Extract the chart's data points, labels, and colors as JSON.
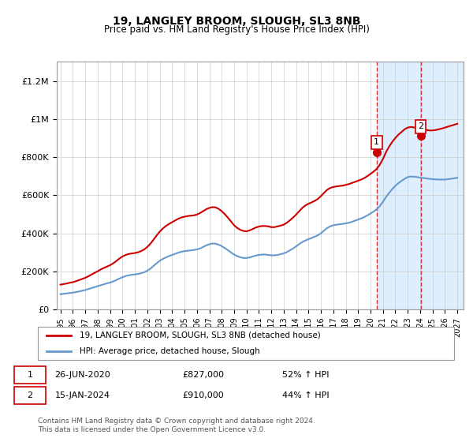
{
  "title": "19, LANGLEY BROOM, SLOUGH, SL3 8NB",
  "subtitle": "Price paid vs. HM Land Registry's House Price Index (HPI)",
  "xlim_start": 1995.0,
  "xlim_end": 2027.5,
  "ylim": [
    0,
    1300000
  ],
  "yticks": [
    0,
    200000,
    400000,
    600000,
    800000,
    1000000,
    1200000
  ],
  "ytick_labels": [
    "£0",
    "£200K",
    "£400K",
    "£600K",
    "£800K",
    "£1M",
    "£1.2M"
  ],
  "xticks": [
    1995,
    1996,
    1997,
    1998,
    1999,
    2000,
    2001,
    2002,
    2003,
    2004,
    2005,
    2006,
    2007,
    2008,
    2009,
    2010,
    2011,
    2012,
    2013,
    2014,
    2015,
    2016,
    2017,
    2018,
    2019,
    2020,
    2021,
    2022,
    2023,
    2024,
    2025,
    2026,
    2027
  ],
  "red_line_color": "#cc0000",
  "blue_line_color": "#6699cc",
  "sale1_x": 2020.49,
  "sale1_y": 827000,
  "sale2_x": 2024.04,
  "sale2_y": 910000,
  "marker_color": "#cc0000",
  "shade_start1": 2020.49,
  "shade_end1": 2024.04,
  "shade_start2": 2024.04,
  "shade_end2": 2027.5,
  "shade_color1": "#ddeeff",
  "shade_color2": "#ddeeff",
  "hatch_color": "#aabbcc",
  "legend_red_label": "19, LANGLEY BROOM, SLOUGH, SL3 8NB (detached house)",
  "legend_blue_label": "HPI: Average price, detached house, Slough",
  "annotation1_label": "1",
  "annotation2_label": "2",
  "table_row1": [
    "1",
    "26-JUN-2020",
    "£827,000",
    "52% ↑ HPI"
  ],
  "table_row2": [
    "2",
    "15-JAN-2024",
    "£910,000",
    "44% ↑ HPI"
  ],
  "footer": "Contains HM Land Registry data © Crown copyright and database right 2024.\nThis data is licensed under the Open Government Licence v3.0.",
  "red_hpi_x": [
    1995.0,
    1995.25,
    1995.5,
    1995.75,
    1996.0,
    1996.25,
    1996.5,
    1996.75,
    1997.0,
    1997.25,
    1997.5,
    1997.75,
    1998.0,
    1998.25,
    1998.5,
    1998.75,
    1999.0,
    1999.25,
    1999.5,
    1999.75,
    2000.0,
    2000.25,
    2000.5,
    2000.75,
    2001.0,
    2001.25,
    2001.5,
    2001.75,
    2002.0,
    2002.25,
    2002.5,
    2002.75,
    2003.0,
    2003.25,
    2003.5,
    2003.75,
    2004.0,
    2004.25,
    2004.5,
    2004.75,
    2005.0,
    2005.25,
    2005.5,
    2005.75,
    2006.0,
    2006.25,
    2006.5,
    2006.75,
    2007.0,
    2007.25,
    2007.5,
    2007.75,
    2008.0,
    2008.25,
    2008.5,
    2008.75,
    2009.0,
    2009.25,
    2009.5,
    2009.75,
    2010.0,
    2010.25,
    2010.5,
    2010.75,
    2011.0,
    2011.25,
    2011.5,
    2011.75,
    2012.0,
    2012.25,
    2012.5,
    2012.75,
    2013.0,
    2013.25,
    2013.5,
    2013.75,
    2014.0,
    2014.25,
    2014.5,
    2014.75,
    2015.0,
    2015.25,
    2015.5,
    2015.75,
    2016.0,
    2016.25,
    2016.5,
    2016.75,
    2017.0,
    2017.25,
    2017.5,
    2017.75,
    2018.0,
    2018.25,
    2018.5,
    2018.75,
    2019.0,
    2019.25,
    2019.5,
    2019.75,
    2020.0,
    2020.25,
    2020.5,
    2020.75,
    2021.0,
    2021.25,
    2021.5,
    2021.75,
    2022.0,
    2022.25,
    2022.5,
    2022.75,
    2023.0,
    2023.25,
    2023.5,
    2023.75,
    2024.0,
    2024.25,
    2024.5,
    2024.75,
    2025.0,
    2025.25,
    2025.5,
    2025.75,
    2026.0,
    2026.25,
    2026.5,
    2026.75,
    2027.0
  ],
  "red_hpi_y": [
    130000,
    133000,
    136000,
    140000,
    143000,
    148000,
    154000,
    160000,
    166000,
    174000,
    183000,
    192000,
    200000,
    210000,
    218000,
    225000,
    232000,
    242000,
    254000,
    267000,
    278000,
    286000,
    291000,
    294000,
    296000,
    300000,
    306000,
    315000,
    328000,
    345000,
    366000,
    388000,
    408000,
    425000,
    438000,
    449000,
    458000,
    467000,
    476000,
    483000,
    487000,
    490000,
    492000,
    494000,
    498000,
    506000,
    516000,
    526000,
    533000,
    537000,
    536000,
    528000,
    516000,
    500000,
    482000,
    462000,
    442000,
    428000,
    418000,
    412000,
    410000,
    415000,
    422000,
    430000,
    435000,
    438000,
    438000,
    436000,
    432000,
    432000,
    436000,
    440000,
    445000,
    455000,
    468000,
    482000,
    498000,
    516000,
    533000,
    546000,
    555000,
    562000,
    570000,
    580000,
    595000,
    612000,
    628000,
    638000,
    643000,
    646000,
    648000,
    650000,
    654000,
    658000,
    664000,
    670000,
    676000,
    682000,
    690000,
    700000,
    712000,
    724000,
    738000,
    760000,
    790000,
    826000,
    855000,
    880000,
    900000,
    918000,
    932000,
    946000,
    955000,
    958000,
    956000,
    952000,
    948000,
    945000,
    942000,
    940000,
    940000,
    942000,
    946000,
    950000,
    955000,
    960000,
    965000,
    970000,
    975000
  ],
  "blue_hpi_x": [
    1995.0,
    1995.25,
    1995.5,
    1995.75,
    1996.0,
    1996.25,
    1996.5,
    1996.75,
    1997.0,
    1997.25,
    1997.5,
    1997.75,
    1998.0,
    1998.25,
    1998.5,
    1998.75,
    1999.0,
    1999.25,
    1999.5,
    1999.75,
    2000.0,
    2000.25,
    2000.5,
    2000.75,
    2001.0,
    2001.25,
    2001.5,
    2001.75,
    2002.0,
    2002.25,
    2002.5,
    2002.75,
    2003.0,
    2003.25,
    2003.5,
    2003.75,
    2004.0,
    2004.25,
    2004.5,
    2004.75,
    2005.0,
    2005.25,
    2005.5,
    2005.75,
    2006.0,
    2006.25,
    2006.5,
    2006.75,
    2007.0,
    2007.25,
    2007.5,
    2007.75,
    2008.0,
    2008.25,
    2008.5,
    2008.75,
    2009.0,
    2009.25,
    2009.5,
    2009.75,
    2010.0,
    2010.25,
    2010.5,
    2010.75,
    2011.0,
    2011.25,
    2011.5,
    2011.75,
    2012.0,
    2012.25,
    2012.5,
    2012.75,
    2013.0,
    2013.25,
    2013.5,
    2013.75,
    2014.0,
    2014.25,
    2014.5,
    2014.75,
    2015.0,
    2015.25,
    2015.5,
    2015.75,
    2016.0,
    2016.25,
    2016.5,
    2016.75,
    2017.0,
    2017.25,
    2017.5,
    2017.75,
    2018.0,
    2018.25,
    2018.5,
    2018.75,
    2019.0,
    2019.25,
    2019.5,
    2019.75,
    2020.0,
    2020.25,
    2020.5,
    2020.75,
    2021.0,
    2021.25,
    2021.5,
    2021.75,
    2022.0,
    2022.25,
    2022.5,
    2022.75,
    2023.0,
    2023.25,
    2023.5,
    2023.75,
    2024.0,
    2024.25,
    2024.5,
    2024.75,
    2025.0,
    2025.25,
    2025.5,
    2025.75,
    2026.0,
    2026.25,
    2026.5,
    2026.75,
    2027.0
  ],
  "blue_hpi_y": [
    80000,
    82000,
    84000,
    86000,
    88000,
    91000,
    94000,
    98000,
    102000,
    107000,
    112000,
    117000,
    122000,
    127000,
    132000,
    137000,
    141000,
    147000,
    154000,
    162000,
    169000,
    175000,
    179000,
    182000,
    184000,
    186000,
    190000,
    195000,
    203000,
    214000,
    228000,
    242000,
    255000,
    265000,
    273000,
    280000,
    286000,
    292000,
    298000,
    303000,
    306000,
    308000,
    310000,
    312000,
    315000,
    320000,
    328000,
    336000,
    342000,
    346000,
    345000,
    340000,
    332000,
    322000,
    311000,
    299000,
    288000,
    280000,
    274000,
    270000,
    270000,
    273000,
    278000,
    283000,
    286000,
    288000,
    288000,
    286000,
    284000,
    284000,
    286000,
    290000,
    294000,
    301000,
    310000,
    320000,
    331000,
    343000,
    354000,
    362000,
    369000,
    375000,
    382000,
    389000,
    400000,
    414000,
    427000,
    436000,
    442000,
    445000,
    447000,
    449000,
    452000,
    455000,
    460000,
    466000,
    472000,
    478000,
    485000,
    494000,
    504000,
    514000,
    526000,
    543000,
    565000,
    590000,
    612000,
    632000,
    649000,
    663000,
    675000,
    686000,
    695000,
    698000,
    697000,
    695000,
    692000,
    690000,
    688000,
    686000,
    684000,
    683000,
    682000,
    682000,
    682000,
    684000,
    686000,
    689000,
    691000
  ]
}
